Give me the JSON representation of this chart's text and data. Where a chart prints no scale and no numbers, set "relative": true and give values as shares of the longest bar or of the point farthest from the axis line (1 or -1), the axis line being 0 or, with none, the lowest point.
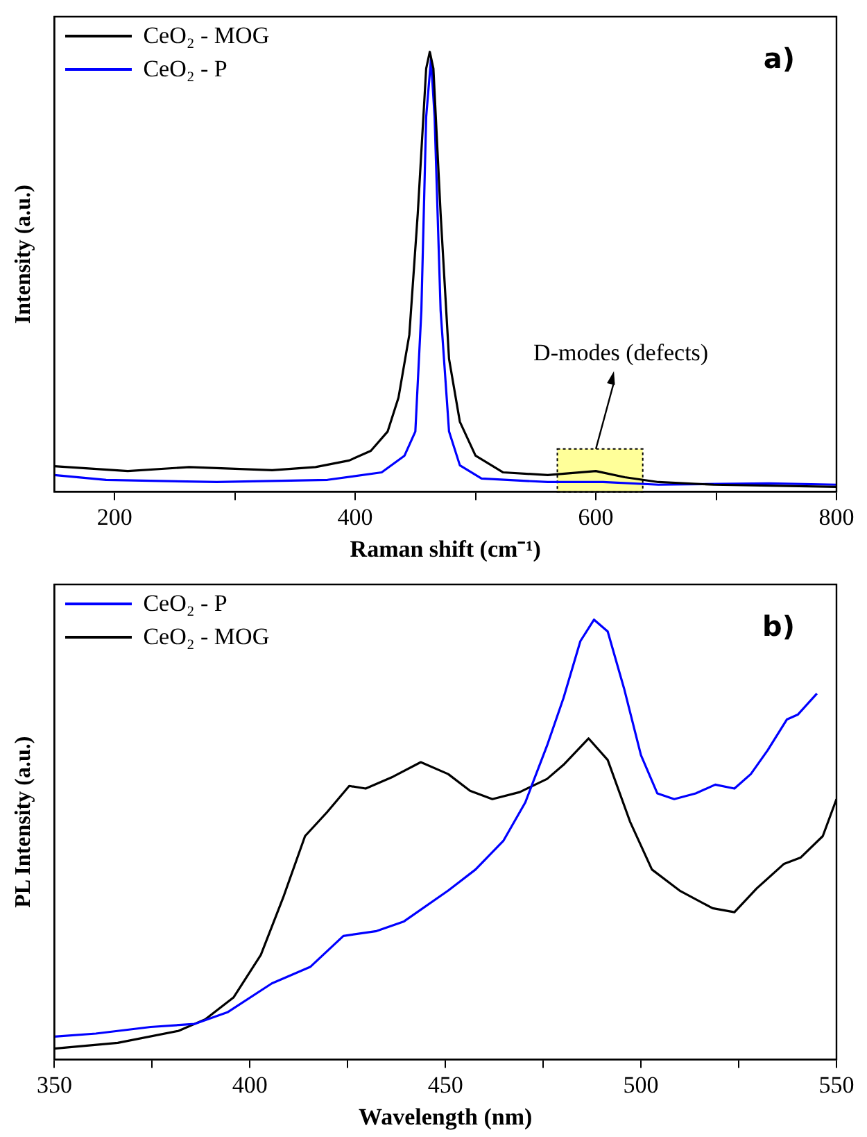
{
  "chart_data": [
    {
      "type": "line",
      "title": "a)",
      "xlabel": "Raman shift (cm⁻¹)",
      "ylabel": "Intensity (a.u.)",
      "relative": true,
      "xlim": [
        150,
        800
      ],
      "xticks": [
        200,
        {
          "value": 300,
          "label": null
        },
        400,
        {
          "value": 500,
          "label": null
        },
        600,
        {
          "value": 700,
          "label": null
        },
        800
      ],
      "legend": "top left",
      "grid": false,
      "bands": [
        {
          "axis": "x",
          "from": 568,
          "to": 639,
          "label": "D-modes (defects)",
          "color": "#ffff99"
        }
      ],
      "series": [
        {
          "name": "CeO₂ - MOG",
          "color": "#000000",
          "x": [
            150,
            211,
            262,
            331,
            367,
            395,
            413,
            427,
            436,
            445,
            452,
            459,
            462,
            465,
            471,
            478,
            487,
            500,
            523,
            560,
            600,
            624,
            652,
            698,
            800
          ],
          "values": [
            0.058,
            0.047,
            0.056,
            0.049,
            0.056,
            0.071,
            0.093,
            0.137,
            0.214,
            0.357,
            0.632,
            0.962,
            1,
            0.962,
            0.632,
            0.302,
            0.159,
            0.082,
            0.044,
            0.038,
            0.047,
            0.033,
            0.022,
            0.016,
            0.011
          ]
        },
        {
          "name": "CeO₂ - P",
          "color": "#0000ff",
          "x": [
            150,
            193,
            285,
            377,
            422,
            441,
            450,
            455,
            459,
            463,
            466,
            471,
            478,
            487,
            505,
            560,
            606,
            652,
            744,
            800
          ],
          "values": [
            0.038,
            0.027,
            0.022,
            0.027,
            0.044,
            0.082,
            0.137,
            0.412,
            0.852,
            0.984,
            0.852,
            0.412,
            0.137,
            0.06,
            0.03,
            0.022,
            0.022,
            0.016,
            0.019,
            0.016
          ]
        }
      ]
    },
    {
      "type": "line",
      "title": "b)",
      "xlabel": "Wavelength (nm)",
      "ylabel": "PL Intensity (a.u.)",
      "relative": true,
      "xlim": [
        350,
        550
      ],
      "xticks": [
        350,
        {
          "value": 375,
          "label": null
        },
        400,
        {
          "value": 425,
          "label": null
        },
        450,
        {
          "value": 475,
          "label": null
        },
        500,
        {
          "value": 525,
          "label": null
        },
        550
      ],
      "legend": "top left",
      "grid": false,
      "series": [
        {
          "name": "CeO₂ - P",
          "color": "#0000ff",
          "x": [
            350,
            360.6,
            374.6,
            385.9,
            394.4,
            405.6,
            415.5,
            423.9,
            432.4,
            439.4,
            450.7,
            457.7,
            464.8,
            470.4,
            476,
            480.2,
            484.5,
            488,
            491.5,
            495.7,
            500,
            504.2,
            508.5,
            514,
            519,
            523.9,
            528.1,
            532.4,
            537.3,
            540.1,
            545
          ],
          "values": [
            0.052,
            0.059,
            0.074,
            0.081,
            0.108,
            0.173,
            0.211,
            0.281,
            0.292,
            0.314,
            0.384,
            0.432,
            0.497,
            0.584,
            0.714,
            0.822,
            0.951,
            1,
            0.973,
            0.843,
            0.692,
            0.605,
            0.592,
            0.605,
            0.625,
            0.616,
            0.649,
            0.703,
            0.773,
            0.784,
            0.832
          ]
        },
        {
          "name": "CeO₂ - MOG",
          "color": "#000000",
          "x": [
            350,
            366.2,
            381.7,
            388.7,
            395.8,
            402.8,
            408.5,
            414.1,
            419.7,
            425.4,
            429.6,
            436.6,
            443.7,
            450.7,
            456.3,
            462,
            469,
            476,
            480.2,
            486.6,
            491.5,
            497.2,
            502.8,
            509.9,
            518.3,
            523.9,
            529.6,
            536.6,
            540.8,
            546.5,
            550
          ],
          "values": [
            0.025,
            0.038,
            0.065,
            0.092,
            0.141,
            0.238,
            0.368,
            0.508,
            0.562,
            0.622,
            0.616,
            0.643,
            0.676,
            0.649,
            0.611,
            0.592,
            0.608,
            0.638,
            0.67,
            0.73,
            0.681,
            0.541,
            0.432,
            0.384,
            0.344,
            0.335,
            0.389,
            0.445,
            0.459,
            0.508,
            0.592
          ]
        }
      ]
    }
  ]
}
